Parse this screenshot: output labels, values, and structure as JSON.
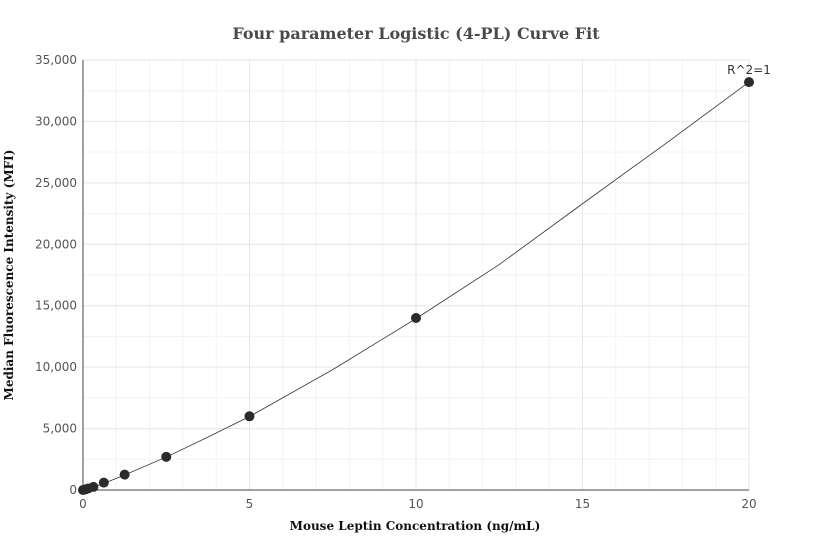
{
  "chart_data": {
    "type": "scatter",
    "title": "Four parameter Logistic (4-PL) Curve Fit",
    "xlabel": "Mouse Leptin Concentration (ng/mL)",
    "ylabel": "Median Fluorescence Intensity (MFI)",
    "xlim": [
      0,
      20
    ],
    "ylim": [
      0,
      35000
    ],
    "x_ticks": [
      0,
      5,
      10,
      15,
      20
    ],
    "x_tick_labels": [
      "0",
      "5",
      "10",
      "15",
      "20"
    ],
    "y_ticks": [
      0,
      5000,
      10000,
      15000,
      20000,
      25000,
      30000,
      35000
    ],
    "y_tick_labels": [
      "0",
      "5,000",
      "10,000",
      "15,000",
      "20,000",
      "25,000",
      "30,000",
      "35,000"
    ],
    "grid": true,
    "legend": "none",
    "annotation": "R^2=1",
    "points": {
      "x": [
        0,
        0.078,
        0.156,
        0.313,
        0.625,
        1.25,
        2.5,
        5,
        10,
        20
      ],
      "y": [
        0,
        50,
        120,
        250,
        600,
        1250,
        2700,
        6000,
        14000,
        33200
      ]
    },
    "fit_curve": {
      "x": [
        0,
        0.3125,
        0.625,
        1.25,
        2.5,
        3.75,
        5,
        7.5,
        10,
        12.5,
        15,
        17.5,
        20
      ],
      "y": [
        0,
        240,
        540,
        1220,
        2680,
        4300,
        5980,
        9800,
        13950,
        18350,
        23300,
        28200,
        33200
      ]
    },
    "colors": {
      "point": "#2b2b2b",
      "line": "#333333",
      "grid": "#e6e6e6"
    }
  }
}
